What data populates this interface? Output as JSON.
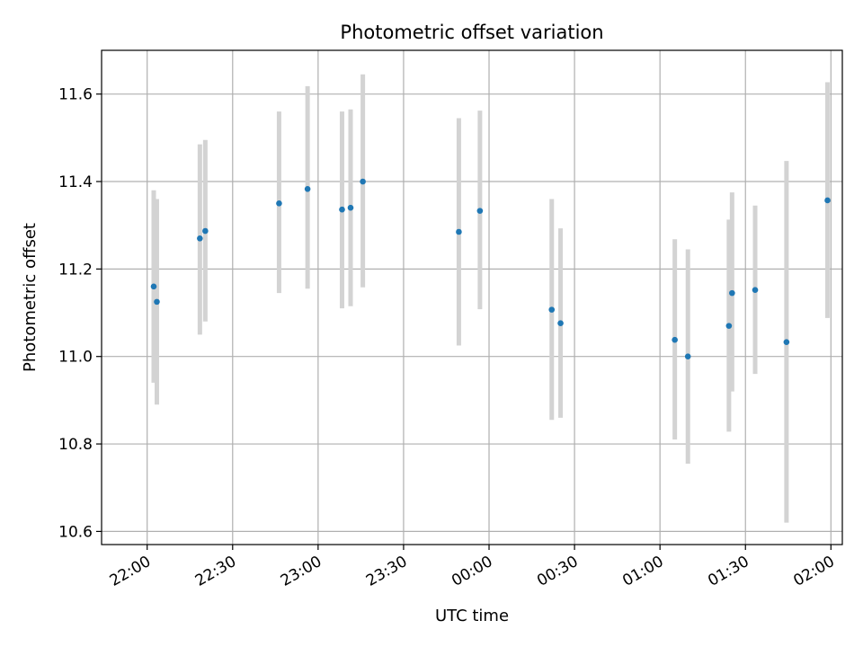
{
  "chart_data": {
    "type": "scatter",
    "title": "Photometric offset variation",
    "xlabel": "UTC time",
    "ylabel": "Photometric offset",
    "x_unit": "minutes from 22:00 UTC",
    "xlim": [
      -16,
      244
    ],
    "ylim": [
      10.57,
      11.7
    ],
    "grid": true,
    "x_ticks": [
      {
        "value": 0,
        "label": "22:00"
      },
      {
        "value": 30,
        "label": "22:30"
      },
      {
        "value": 60,
        "label": "23:00"
      },
      {
        "value": 90,
        "label": "23:30"
      },
      {
        "value": 120,
        "label": "00:00"
      },
      {
        "value": 150,
        "label": "00:30"
      },
      {
        "value": 180,
        "label": "01:00"
      },
      {
        "value": 210,
        "label": "01:30"
      },
      {
        "value": 240,
        "label": "02:00"
      }
    ],
    "y_ticks": [
      {
        "value": 10.6,
        "label": "10.6"
      },
      {
        "value": 10.8,
        "label": "10.8"
      },
      {
        "value": 11.0,
        "label": "11.0"
      },
      {
        "value": 11.2,
        "label": "11.2"
      },
      {
        "value": 11.4,
        "label": "11.4"
      },
      {
        "value": 11.6,
        "label": "11.6"
      }
    ],
    "points": [
      {
        "x": 2.3,
        "y": 11.16,
        "ylow": 10.94,
        "yhigh": 11.38
      },
      {
        "x": 3.4,
        "y": 11.125,
        "ylow": 10.89,
        "yhigh": 11.36
      },
      {
        "x": 18.5,
        "y": 11.27,
        "ylow": 11.05,
        "yhigh": 11.485
      },
      {
        "x": 20.4,
        "y": 11.287,
        "ylow": 11.08,
        "yhigh": 11.495
      },
      {
        "x": 46.3,
        "y": 11.35,
        "ylow": 11.145,
        "yhigh": 11.56
      },
      {
        "x": 56.3,
        "y": 11.383,
        "ylow": 11.155,
        "yhigh": 11.618
      },
      {
        "x": 68.4,
        "y": 11.336,
        "ylow": 11.11,
        "yhigh": 11.56
      },
      {
        "x": 71.4,
        "y": 11.34,
        "ylow": 11.115,
        "yhigh": 11.565
      },
      {
        "x": 75.7,
        "y": 11.4,
        "ylow": 11.158,
        "yhigh": 11.645
      },
      {
        "x": 109.4,
        "y": 11.285,
        "ylow": 11.025,
        "yhigh": 11.545
      },
      {
        "x": 116.8,
        "y": 11.333,
        "ylow": 11.108,
        "yhigh": 11.562
      },
      {
        "x": 142.0,
        "y": 11.107,
        "ylow": 10.855,
        "yhigh": 11.36
      },
      {
        "x": 145.1,
        "y": 11.076,
        "ylow": 10.86,
        "yhigh": 11.293
      },
      {
        "x": 185.2,
        "y": 11.038,
        "ylow": 10.81,
        "yhigh": 11.268
      },
      {
        "x": 189.8,
        "y": 11.0,
        "ylow": 10.755,
        "yhigh": 11.245
      },
      {
        "x": 204.2,
        "y": 11.07,
        "ylow": 10.828,
        "yhigh": 11.313
      },
      {
        "x": 205.3,
        "y": 11.145,
        "ylow": 10.92,
        "yhigh": 11.375
      },
      {
        "x": 213.4,
        "y": 11.152,
        "ylow": 10.96,
        "yhigh": 11.345
      },
      {
        "x": 224.4,
        "y": 11.033,
        "ylow": 10.62,
        "yhigh": 11.447
      },
      {
        "x": 238.8,
        "y": 11.357,
        "ylow": 11.088,
        "yhigh": 11.627
      }
    ],
    "colors": {
      "marker": "#1f77b4",
      "errorbar": "#d3d3d3",
      "grid": "#b0b0b0",
      "axes": "#000000"
    }
  }
}
